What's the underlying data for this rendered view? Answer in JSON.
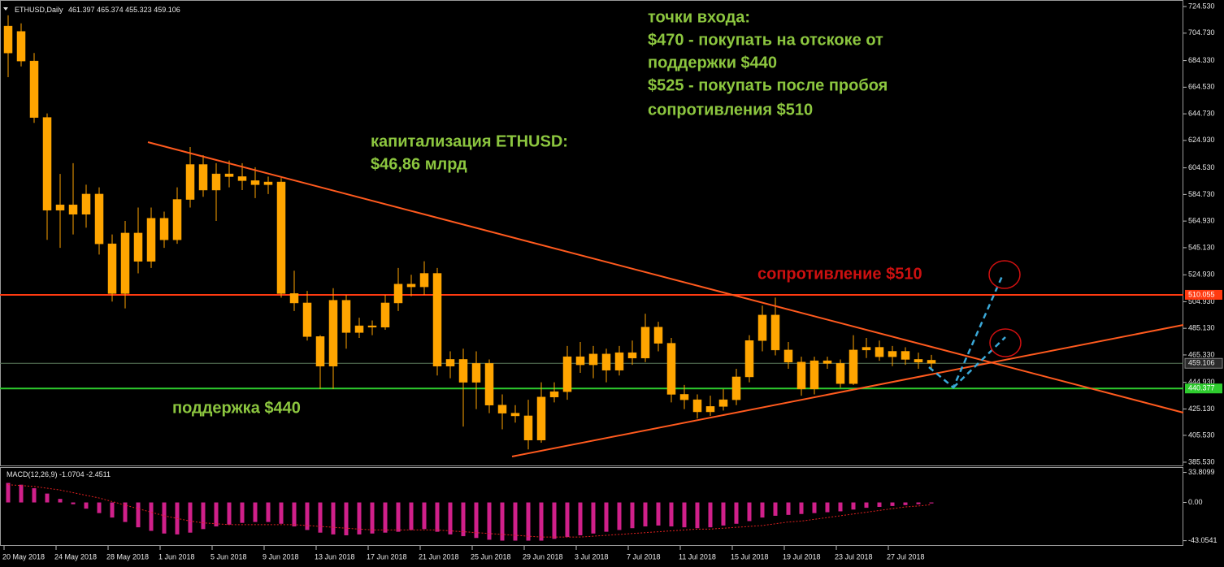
{
  "chart_data": [
    {
      "type": "candlestick",
      "title": "ETHUSD,Daily",
      "color": "#ffa500",
      "categories": [
        "20 May 2018",
        null,
        null,
        null,
        "24 May 2018",
        null,
        null,
        null,
        "28 May 2018",
        null,
        null,
        null,
        "1 Jun 2018",
        null,
        null,
        null,
        "5 Jun 2018",
        null,
        null,
        null,
        "9 Jun 2018",
        null,
        null,
        null,
        "13 Jun 2018",
        null,
        null,
        null,
        "17 Jun 2018",
        null,
        null,
        null,
        "21 Jun 2018",
        null,
        null,
        null,
        "25 Jun 2018",
        null,
        null,
        null,
        "29 Jun 2018",
        null,
        null,
        null,
        "3 Jul 2018",
        null,
        null,
        null,
        "7 Jul 2018",
        null,
        null,
        null,
        "11 Jul 2018",
        null,
        null,
        null,
        "15 Jul 2018",
        null,
        null,
        null,
        "19 Jul 2018",
        null,
        null,
        null,
        "23 Jul 2018",
        null,
        null,
        null,
        "27 Jul 2018",
        null,
        null,
        null
      ],
      "open": [
        690,
        706,
        684,
        642,
        573,
        577,
        570,
        585,
        548,
        511,
        556,
        535,
        567,
        551,
        581,
        607,
        588,
        600,
        598,
        595,
        592,
        594,
        511,
        504,
        479,
        457,
        506,
        482,
        487,
        486,
        504,
        518,
        516,
        526,
        457,
        462,
        445,
        459,
        428,
        422,
        420,
        402,
        434,
        438,
        464,
        458,
        466,
        454,
        467,
        463,
        486,
        474,
        436,
        432,
        423,
        427,
        432,
        449,
        476,
        495,
        469,
        460,
        440,
        461,
        459,
        444,
        469,
        471,
        464,
        468,
        462,
        461.397
      ],
      "high": [
        718,
        712,
        690,
        645,
        600,
        608,
        592,
        590,
        555,
        565,
        575,
        575,
        572,
        590,
        620,
        614,
        608,
        610,
        608,
        605,
        598,
        597,
        528,
        513,
        480,
        515,
        510,
        493,
        491,
        510,
        530,
        525,
        535,
        530,
        468,
        470,
        468,
        462,
        436,
        428,
        432,
        445,
        445,
        472,
        475,
        472,
        470,
        472,
        476,
        496,
        490,
        478,
        443,
        436,
        435,
        440,
        455,
        480,
        502,
        508,
        475,
        464,
        464,
        464,
        462,
        480,
        478,
        476,
        472,
        471,
        467,
        465.374
      ],
      "low": [
        672,
        680,
        638,
        551,
        545,
        555,
        560,
        540,
        505,
        500,
        526,
        530,
        545,
        548,
        575,
        583,
        565,
        590,
        588,
        582,
        585,
        508,
        498,
        476,
        440,
        440,
        470,
        478,
        480,
        484,
        498,
        509,
        510,
        450,
        448,
        412,
        425,
        422,
        410,
        415,
        395,
        400,
        430,
        432,
        452,
        448,
        445,
        450,
        458,
        460,
        468,
        430,
        425,
        418,
        420,
        424,
        428,
        445,
        468,
        465,
        455,
        435,
        436,
        455,
        441,
        443,
        463,
        461,
        457,
        458,
        455,
        455.323
      ],
      "close": [
        710,
        684,
        642,
        573,
        577,
        570,
        585,
        548,
        511,
        556,
        535,
        567,
        551,
        581,
        607,
        588,
        600,
        598,
        595,
        592,
        594,
        511,
        504,
        479,
        457,
        506,
        482,
        487,
        486,
        504,
        518,
        516,
        526,
        457,
        462,
        445,
        459,
        428,
        422,
        420,
        402,
        434,
        438,
        464,
        458,
        466,
        454,
        467,
        463,
        486,
        474,
        436,
        432,
        423,
        427,
        432,
        449,
        476,
        495,
        469,
        460,
        440,
        461,
        459,
        444,
        469,
        471,
        464,
        468,
        462,
        460,
        459.106
      ],
      "ylim": [
        383.1,
        728.8
      ],
      "yticks": [
        {
          "value": 724.53,
          "label": "724.530"
        },
        {
          "value": 704.73,
          "label": "704.730"
        },
        {
          "value": 684.33,
          "label": "684.330"
        },
        {
          "value": 664.53,
          "label": "664.530"
        },
        {
          "value": 644.73,
          "label": "644.730"
        },
        {
          "value": 624.93,
          "label": "624.930"
        },
        {
          "value": 604.53,
          "label": "604.530"
        },
        {
          "value": 584.73,
          "label": "584.730"
        },
        {
          "value": 564.93,
          "label": "564.930"
        },
        {
          "value": 545.13,
          "label": "545.130"
        },
        {
          "value": 524.93,
          "label": "524.930"
        },
        {
          "value": 504.93,
          "label": "504.930"
        },
        {
          "value": 485.13,
          "label": "485.130"
        },
        {
          "value": 465.33,
          "label": "465.330"
        },
        {
          "value": 444.93,
          "label": "444.930"
        },
        {
          "value": 425.13,
          "label": "425.130"
        },
        {
          "value": 405.53,
          "label": "405.530"
        },
        {
          "value": 385.53,
          "label": "385.530"
        }
      ],
      "levels": [
        {
          "value": 510.055,
          "color": "#ff3a10"
        },
        {
          "value": 440.377,
          "color": "#2ecc2e"
        }
      ],
      "annotations": [
        {
          "text": "точки входа:",
          "color": "#8cc63f"
        },
        {
          "text": "$470 - покупать на отскоке от",
          "color": "#8cc63f"
        },
        {
          "text": "поддержки $440",
          "color": "#8cc63f"
        },
        {
          "text": "$525 - покупать после пробоя",
          "color": "#8cc63f"
        },
        {
          "text": "сопротивления $510",
          "color": "#8cc63f"
        },
        {
          "text": "капитализация ETHUSD:",
          "color": "#8cc63f"
        },
        {
          "text": "$46,86 млрд",
          "color": "#8cc63f"
        },
        {
          "text": "поддержка $440",
          "color": "#8cc63f"
        },
        {
          "text": "сопротивление $510",
          "color": "#cc1010"
        }
      ]
    },
    {
      "type": "macd",
      "title": "MACD(12,26,9)",
      "series": [
        {
          "type": "bar",
          "color": "#d0208a",
          "values": [
            22,
            20,
            16,
            10,
            4,
            -2,
            -7,
            -12,
            -17,
            -22,
            -28,
            -32,
            -35,
            -36,
            -34,
            -30,
            -27,
            -25,
            -23,
            -22,
            -22,
            -24,
            -27,
            -31,
            -34,
            -36,
            -37,
            -36,
            -35,
            -34,
            -33,
            -31,
            -30,
            -33,
            -36,
            -38,
            -40,
            -42,
            -43,
            -43,
            -43,
            -43,
            -41,
            -39,
            -37,
            -35,
            -33,
            -31,
            -29,
            -27,
            -26,
            -27,
            -28,
            -29,
            -28,
            -26,
            -24,
            -21,
            -17,
            -15,
            -14,
            -13,
            -12,
            -11,
            -10,
            -8,
            -6,
            -5,
            -4,
            -3,
            -2,
            -1.0704
          ]
        },
        {
          "type": "line",
          "color": "#e02020",
          "values": [
            20,
            19,
            18,
            16,
            14,
            11,
            8,
            5,
            1,
            -3,
            -7,
            -11,
            -15,
            -18,
            -21,
            -23,
            -24,
            -25,
            -25,
            -25,
            -25,
            -25,
            -25,
            -26,
            -27,
            -28,
            -29,
            -30,
            -31,
            -31,
            -31,
            -31,
            -31,
            -31,
            -32,
            -33,
            -34,
            -35,
            -36,
            -37,
            -38,
            -39,
            -39,
            -39,
            -39,
            -38,
            -37,
            -36,
            -35,
            -34,
            -33,
            -32,
            -31,
            -30,
            -30,
            -29,
            -28,
            -27,
            -26,
            -24,
            -22,
            -21,
            -19,
            -17,
            -15,
            -13,
            -11,
            -9,
            -7,
            -5,
            -4,
            -2.4511
          ]
        }
      ],
      "ylim": [
        -48,
        38
      ],
      "yticks": [
        33.8099,
        {
          "value": 0,
          "label": "0.00"
        },
        -43.0541
      ]
    }
  ]
}
